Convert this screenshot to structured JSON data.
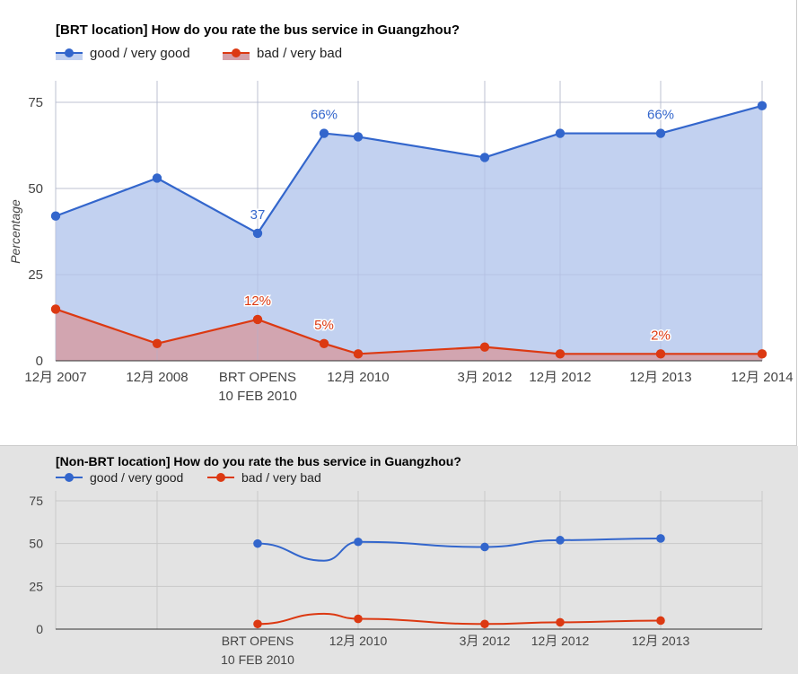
{
  "chart_data": [
    {
      "type": "area",
      "title": "[BRT location] How do you rate the bus service in Guangzhou?",
      "ylabel": "Percentage",
      "ylim": [
        0,
        75
      ],
      "yticks": [
        "0",
        "25",
        "50",
        "75"
      ],
      "x_ticks": [
        {
          "label": "12月 2007",
          "sub": ""
        },
        {
          "label": "12月 2008",
          "sub": ""
        },
        {
          "label": "BRT OPENS",
          "sub": "10 FEB 2010"
        },
        {
          "label": "12月 2010",
          "sub": ""
        },
        {
          "label": "3月 2012",
          "sub": ""
        },
        {
          "label": "12月 2012",
          "sub": ""
        },
        {
          "label": "12月 2013",
          "sub": ""
        },
        {
          "label": "12月 2014",
          "sub": ""
        }
      ],
      "legend_position": "top-left",
      "grid": true,
      "series": [
        {
          "name": "good / very good",
          "color": "#3366cc",
          "fill": "#c2d1f0",
          "x": [
            "12月 2007",
            "12月 2008",
            "BRT OPENS",
            "2010-05",
            "12月 2010",
            "3月 2012",
            "12月 2012",
            "12月 2013",
            "12月 2014"
          ],
          "values": [
            42,
            53,
            37,
            66,
            65,
            59,
            66,
            66,
            74
          ],
          "labels": [
            "",
            "",
            "37",
            "66%",
            "",
            "",
            "",
            "66%",
            ""
          ]
        },
        {
          "name": "bad / very bad",
          "color": "#dc3912",
          "fill": "#d4a0a8",
          "x": [
            "12月 2007",
            "12月 2008",
            "BRT OPENS",
            "2010-05",
            "12月 2010",
            "3月 2012",
            "12月 2012",
            "12月 2013",
            "12月 2014"
          ],
          "values": [
            15,
            5,
            12,
            5,
            2,
            4,
            2,
            2,
            2
          ],
          "labels": [
            "",
            "",
            "12%",
            "5%",
            "",
            "",
            "",
            "2%",
            ""
          ]
        }
      ]
    },
    {
      "type": "line",
      "title": "[Non-BRT location] How do you rate the bus service in Guangzhou?",
      "ylabel": "",
      "ylim": [
        0,
        75
      ],
      "yticks": [
        "0",
        "25",
        "50",
        "75"
      ],
      "x_ticks": [
        {
          "label": "BRT OPENS",
          "sub": "10 FEB 2010"
        },
        {
          "label": "12月 2010",
          "sub": ""
        },
        {
          "label": "3月 2012",
          "sub": ""
        },
        {
          "label": "12月 2012",
          "sub": ""
        },
        {
          "label": "12月 2013",
          "sub": ""
        }
      ],
      "legend_position": "top-left",
      "grid": true,
      "series": [
        {
          "name": "good / very good",
          "color": "#3366cc",
          "x": [
            "BRT OPENS",
            "2010-05",
            "12月 2010",
            "3月 2012",
            "12月 2012",
            "12月 2013"
          ],
          "values": [
            50,
            40,
            51,
            48,
            52,
            53
          ]
        },
        {
          "name": "bad / very bad",
          "color": "#dc3912",
          "x": [
            "BRT OPENS",
            "2010-05",
            "12月 2010",
            "3月 2012",
            "12月 2012",
            "12月 2013"
          ],
          "values": [
            3,
            9,
            6,
            3,
            4,
            5
          ]
        }
      ]
    }
  ]
}
